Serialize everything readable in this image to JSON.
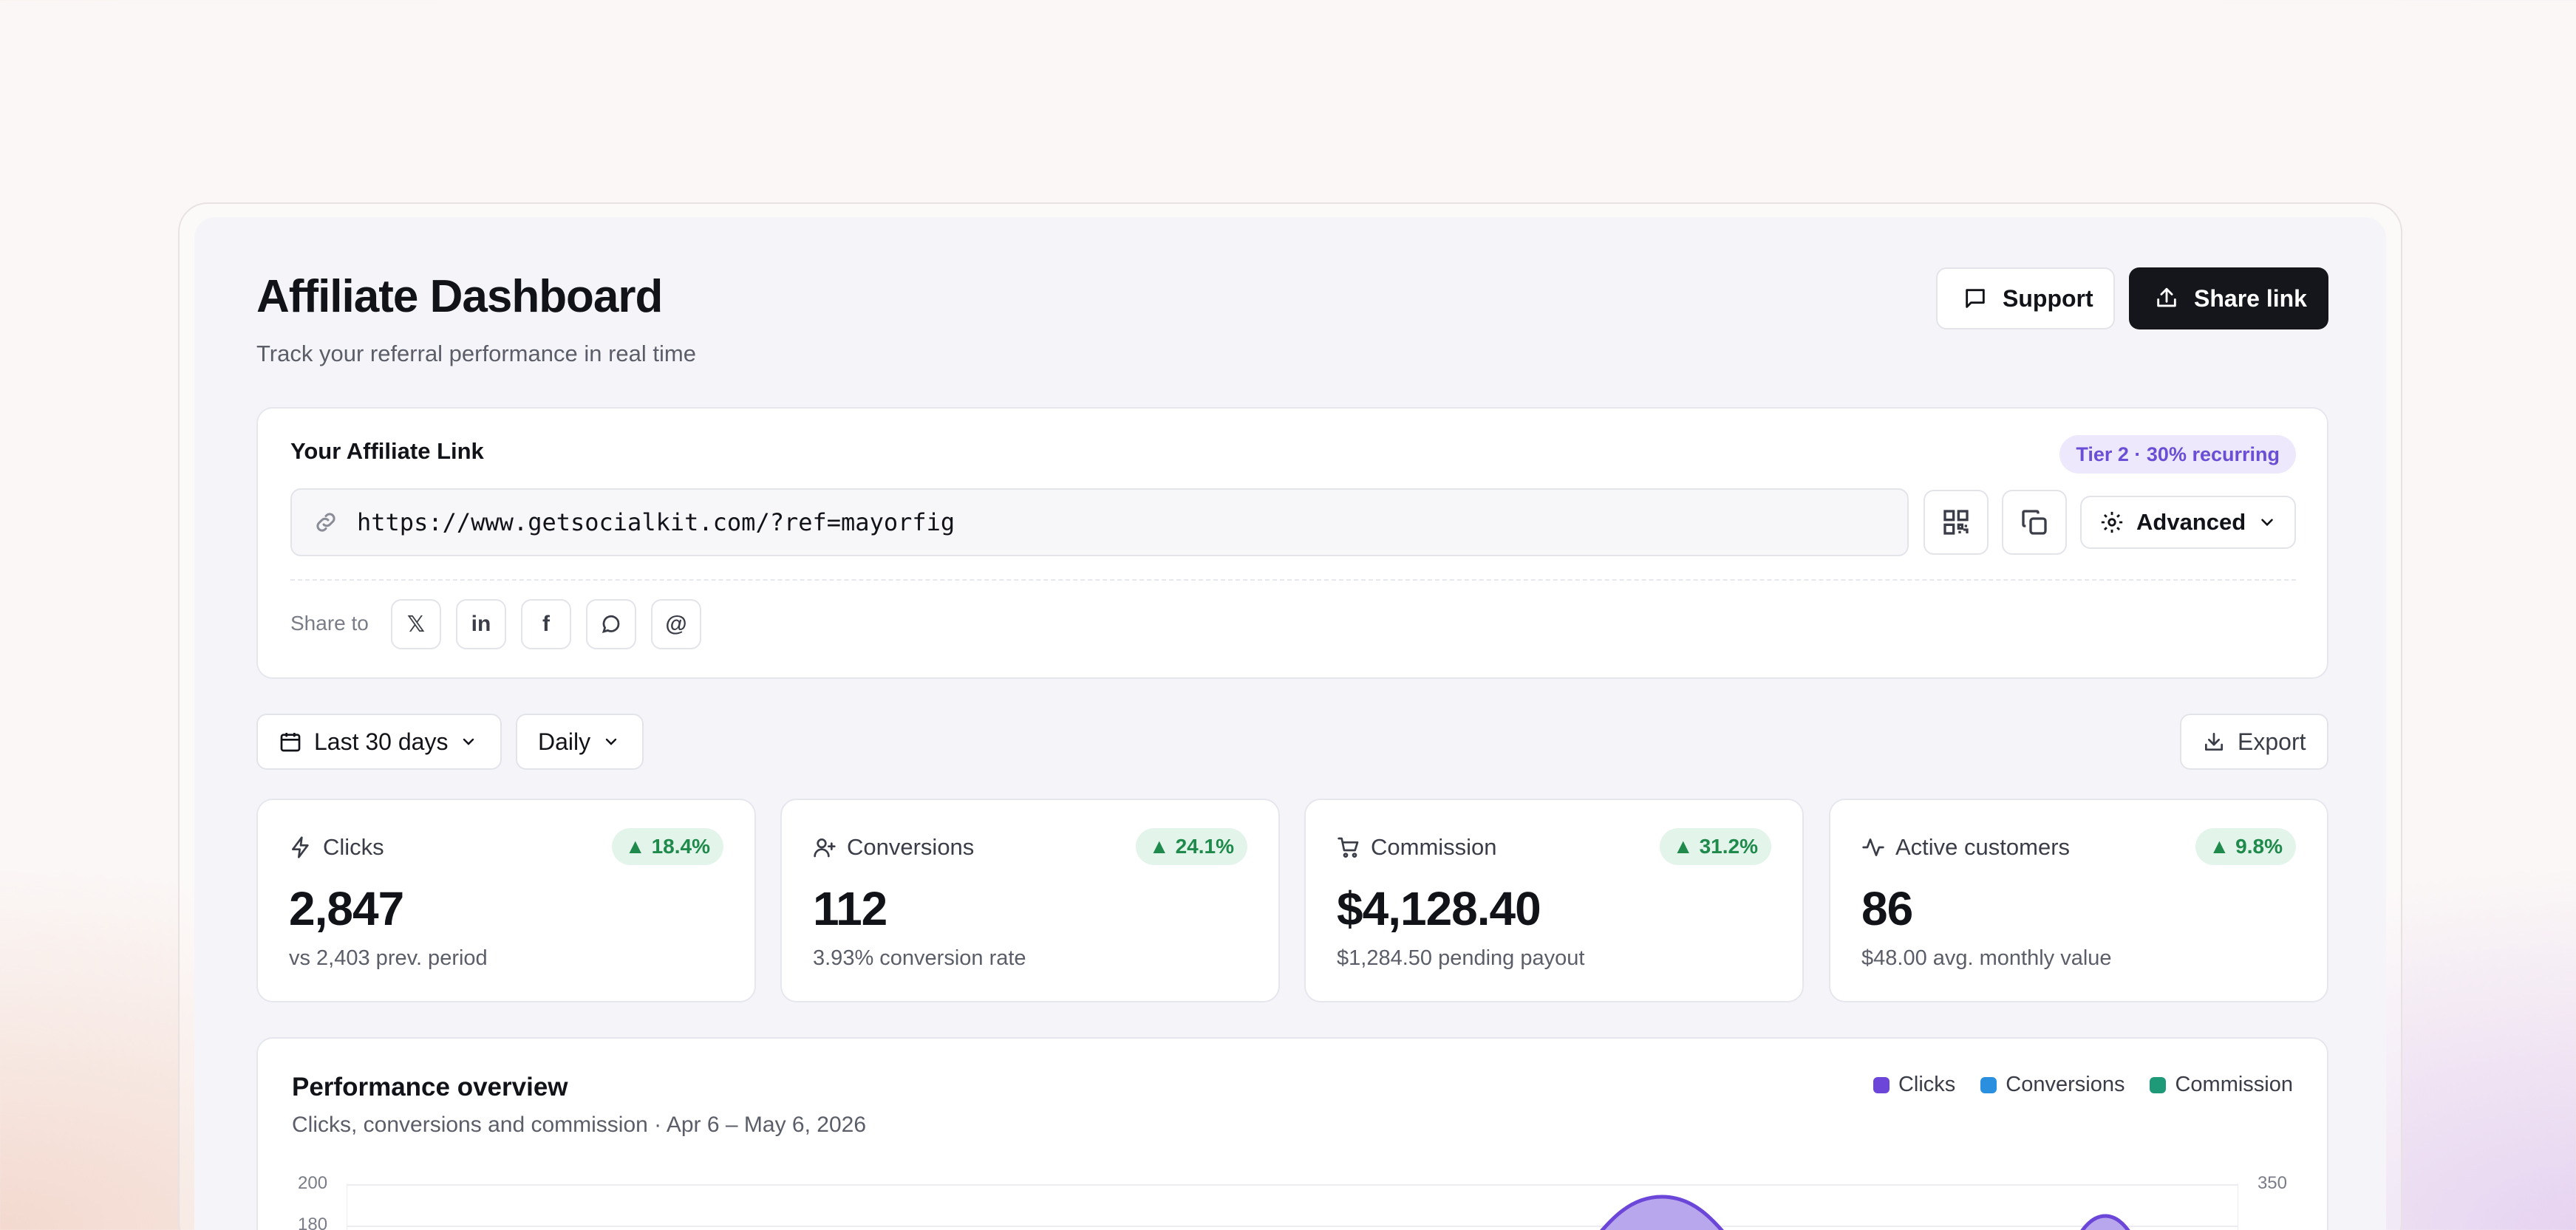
{
  "header": {
    "title": "Affiliate Dashboard",
    "subtitle": "Track your referral performance in real time",
    "support_label": "Support",
    "share_label": "Share link",
    "icons": [
      "message-square-icon",
      "upload-icon"
    ]
  },
  "affiliate_link": {
    "label": "Your Affiliate Link",
    "tier_badge": "Tier 2 · 30% recurring",
    "url": "https://www.getsocialkit.com/?ref=mayorfig",
    "advanced_label": "Advanced",
    "share_to_label": "Share to",
    "social_icons": [
      "x-icon",
      "linkedin-icon",
      "facebook-icon",
      "chat-icon",
      "at-icon"
    ],
    "social_glyphs": [
      "𝕏",
      "in",
      "f",
      "",
      "@"
    ]
  },
  "filters": {
    "range_label": "Last 30 days",
    "interval_label": "Daily",
    "export_label": "Export"
  },
  "stats": [
    {
      "label": "Clicks",
      "delta": "18.4%",
      "value": "2,847",
      "sub": "vs 2,403 prev. period",
      "icon": "zap-icon"
    },
    {
      "label": "Conversions",
      "delta": "24.1%",
      "value": "112",
      "sub": "3.93% conversion rate",
      "icon": "user-plus-icon"
    },
    {
      "label": "Commission",
      "delta": "31.2%",
      "value": "$4,128.40",
      "sub": "$1,284.50 pending payout",
      "icon": "cart-icon"
    },
    {
      "label": "Active customers",
      "delta": "9.8%",
      "value": "86",
      "sub": "$48.00 avg. monthly value",
      "icon": "activity-icon"
    }
  ],
  "performance": {
    "title": "Performance overview",
    "subtitle": "Clicks, conversions and commission · Apr 6 – May 6, 2026",
    "legend": [
      {
        "name": "Clicks",
        "color": "#6b46d8"
      },
      {
        "name": "Conversions",
        "color": "#2b8fe0"
      },
      {
        "name": "Commission",
        "color": "#1f9a78"
      }
    ],
    "left_ticks": [
      "200",
      "180"
    ],
    "right_ticks": [
      "350"
    ]
  },
  "colors": {
    "accent": "#6a4fd6",
    "positive": "#1f8a4c",
    "dark_button": "#14161c"
  }
}
